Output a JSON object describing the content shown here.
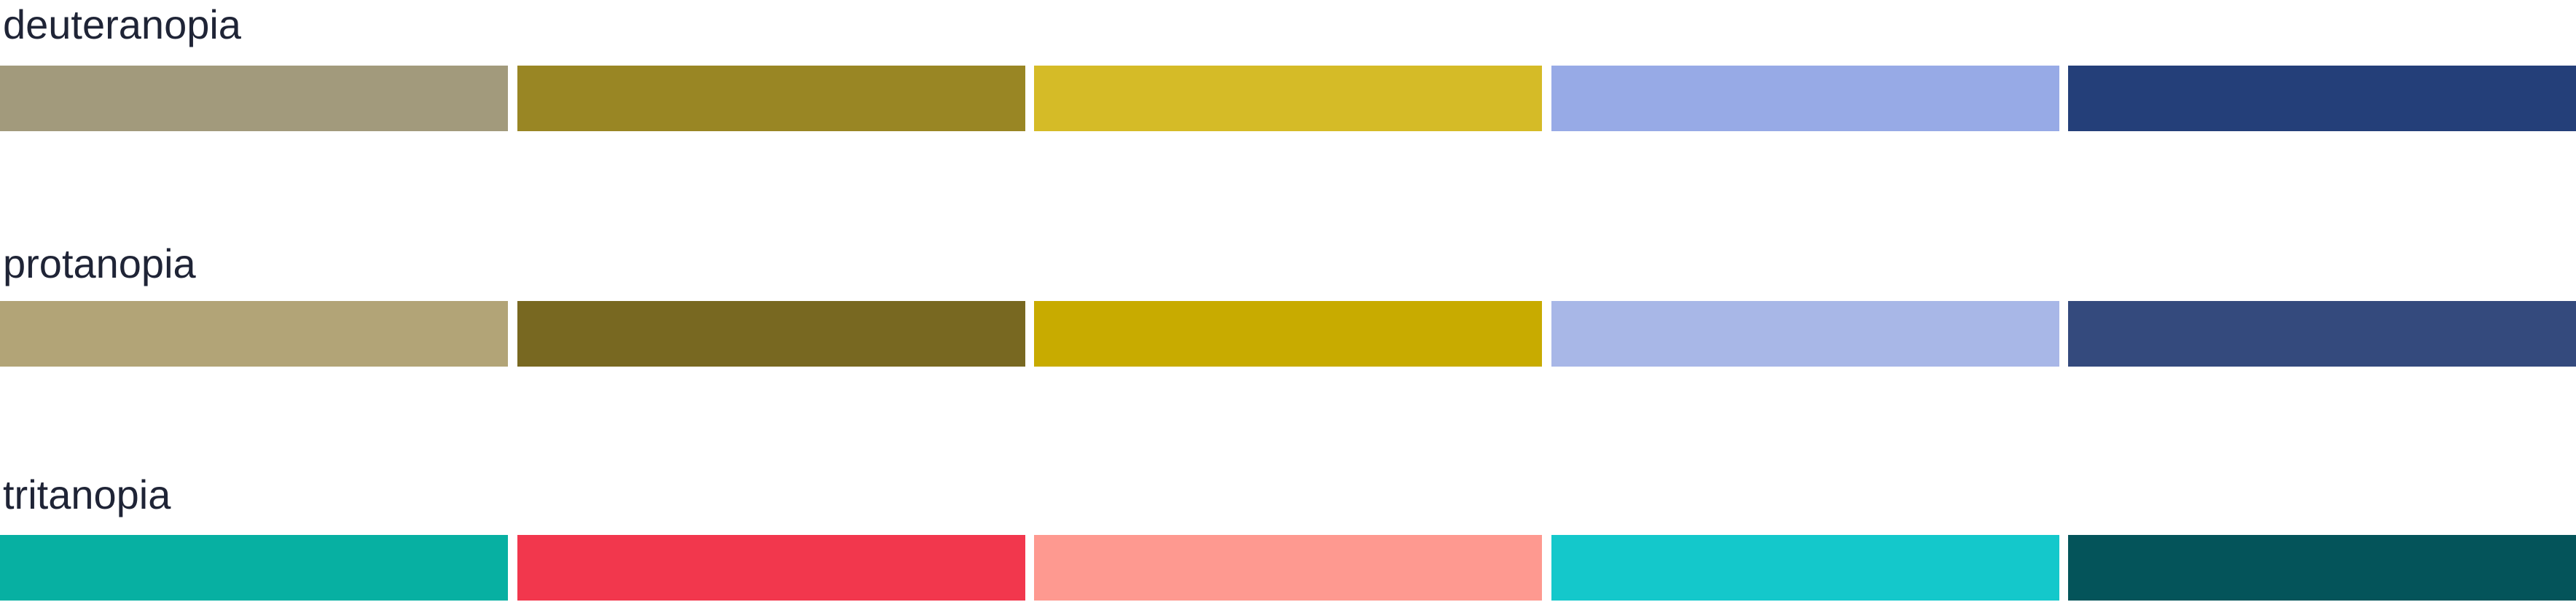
{
  "groups": [
    {
      "label": "deuteranopia",
      "swatches": [
        "#a29a7c",
        "#998624",
        "#d5bb27",
        "#97aae6",
        "#243f79"
      ]
    },
    {
      "label": "protanopia",
      "swatches": [
        "#b2a477",
        "#786821",
        "#c8ab00",
        "#a8b7e7",
        "#344a7d"
      ]
    },
    {
      "label": "tritanopia",
      "swatches": [
        "#07b0a2",
        "#f2374d",
        "#fe9990",
        "#14c8cb",
        "#04545a"
      ]
    }
  ]
}
